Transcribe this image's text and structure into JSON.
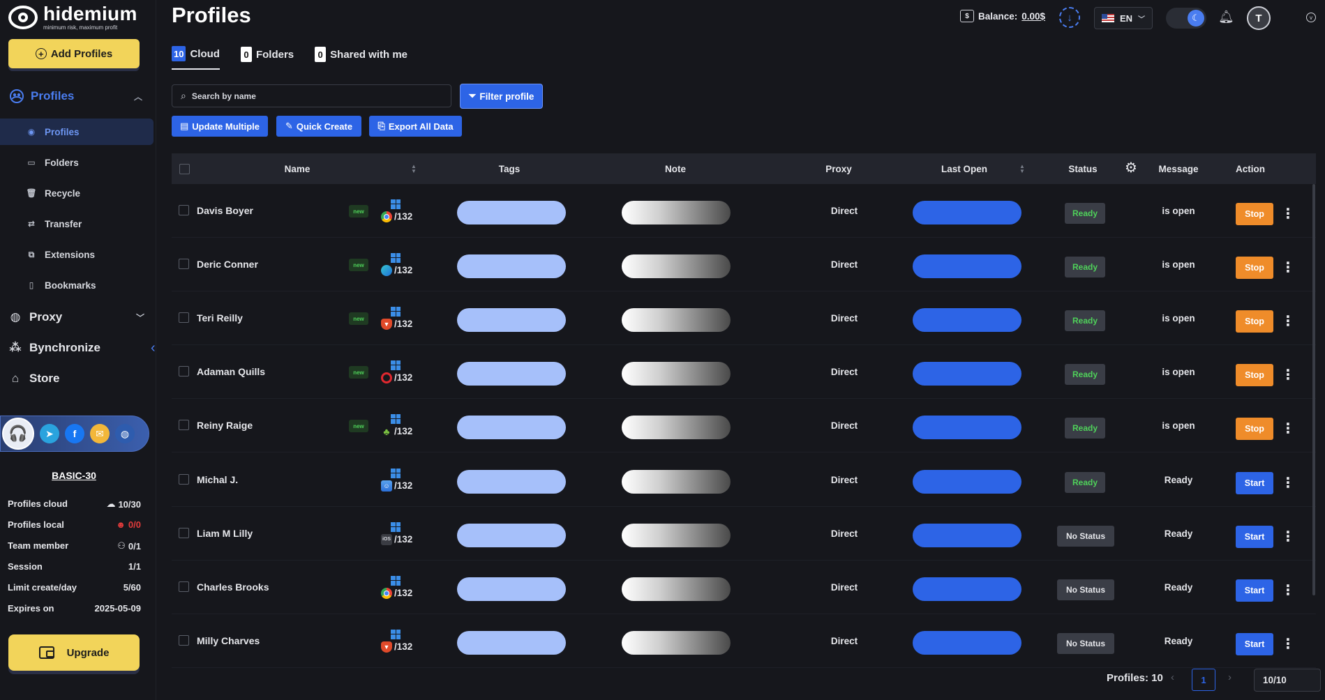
{
  "brand": {
    "name": "hidemium",
    "tagline": "minimum risk, maximum profit"
  },
  "sidebar": {
    "add_profiles": "Add Profiles",
    "profiles_group": "Profiles",
    "sub_items": [
      {
        "label": "Profiles",
        "icon": "profile-circle-icon",
        "active": true
      },
      {
        "label": "Folders",
        "icon": "folder-icon"
      },
      {
        "label": "Recycle",
        "icon": "trash-icon"
      },
      {
        "label": "Transfer",
        "icon": "transfer-icon"
      },
      {
        "label": "Extensions",
        "icon": "puzzle-icon"
      },
      {
        "label": "Bookmarks",
        "icon": "book-icon"
      }
    ],
    "main_items": [
      {
        "label": "Proxy",
        "icon": "globe-icon",
        "has_caret": true
      },
      {
        "label": "Bynchronize",
        "icon": "sync-dots-icon"
      },
      {
        "label": "Store",
        "icon": "store-icon"
      }
    ],
    "plan": {
      "title": "BASIC-30",
      "rows": [
        {
          "label": "Profiles cloud",
          "value": "10/30"
        },
        {
          "label": "Profiles local",
          "value": "0/0"
        },
        {
          "label": "Team member",
          "value": "0/1"
        },
        {
          "label": "Session",
          "value": "1/1"
        },
        {
          "label": "Limit create/day",
          "value": "5/60"
        },
        {
          "label": "Expires on",
          "value": "2025-05-09"
        }
      ]
    },
    "upgrade": "Upgrade"
  },
  "header": {
    "title": "Profiles",
    "balance_label": "Balance:",
    "balance_value": "0.00$",
    "lang": "EN",
    "avatar_initial": "T"
  },
  "tabs": [
    {
      "count": "10",
      "label": "Cloud",
      "active": true
    },
    {
      "count": "0",
      "label": "Folders"
    },
    {
      "count": "0",
      "label": "Shared with me"
    }
  ],
  "toolbar": {
    "search_placeholder": "Search by name",
    "filter": "Filter profile",
    "update_multiple": "Update Multiple",
    "quick_create": "Quick Create",
    "export_all": "Export All Data"
  },
  "table": {
    "columns": {
      "name": "Name",
      "tags": "Tags",
      "note": "Note",
      "proxy": "Proxy",
      "last_open": "Last Open",
      "status": "Status",
      "message": "Message",
      "action": "Action"
    },
    "rows": [
      {
        "name": "Davis Boyer",
        "badge": "new",
        "browser": "chrome",
        "version": "/132",
        "proxy": "Direct",
        "status": "Ready",
        "message": "is open",
        "action": "Stop"
      },
      {
        "name": "Deric Conner",
        "badge": "new",
        "browser": "edge",
        "version": "/132",
        "proxy": "Direct",
        "status": "Ready",
        "message": "is open",
        "action": "Stop"
      },
      {
        "name": "Teri Reilly",
        "badge": "new",
        "browser": "brave",
        "version": "/132",
        "proxy": "Direct",
        "status": "Ready",
        "message": "is open",
        "action": "Stop"
      },
      {
        "name": "Adaman Quills",
        "badge": "new",
        "browser": "opera",
        "version": "/132",
        "proxy": "Direct",
        "status": "Ready",
        "message": "is open",
        "action": "Stop"
      },
      {
        "name": "Reiny Raige",
        "badge": "new",
        "browser": "android",
        "version": "/132",
        "proxy": "Direct",
        "status": "Ready",
        "message": "is open",
        "action": "Stop"
      },
      {
        "name": "Michal J.",
        "badge": "",
        "browser": "mac",
        "version": "/132",
        "proxy": "Direct",
        "status": "Ready",
        "message": "Ready",
        "action": "Start"
      },
      {
        "name": "Liam M Lilly",
        "badge": "",
        "browser": "ios",
        "version": "/132",
        "proxy": "Direct",
        "status": "No Status",
        "message": "Ready",
        "action": "Start"
      },
      {
        "name": "Charles Brooks",
        "badge": "",
        "browser": "chrome",
        "version": "/132",
        "proxy": "Direct",
        "status": "No Status",
        "message": "Ready",
        "action": "Start"
      },
      {
        "name": "Milly Charves",
        "badge": "",
        "browser": "brave",
        "version": "/132",
        "proxy": "Direct",
        "status": "No Status",
        "message": "Ready",
        "action": "Start"
      }
    ]
  },
  "footer": {
    "count_label": "Profiles: 10",
    "page": "1",
    "page_size": "10/10"
  }
}
